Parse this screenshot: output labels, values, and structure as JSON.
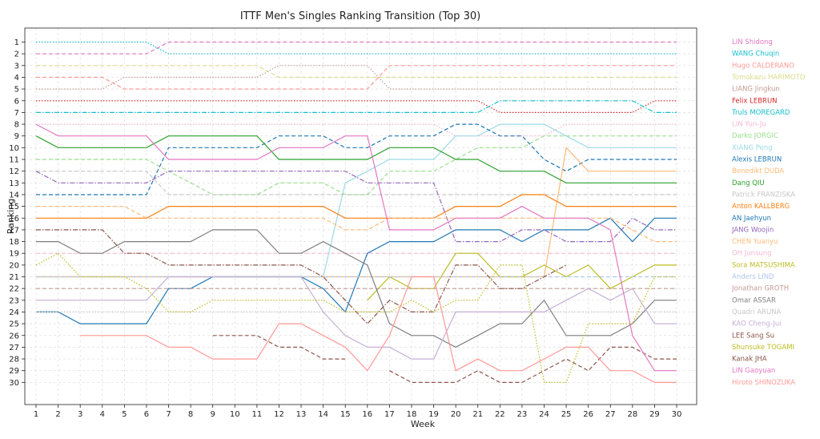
{
  "chart_data": {
    "type": "line",
    "title": "ITTF Men's Singles Ranking Transition (Top 30)",
    "xlabel": "Week",
    "ylabel": "Ranking",
    "x": [
      1,
      2,
      3,
      4,
      5,
      6,
      7,
      8,
      9,
      10,
      11,
      12,
      13,
      14,
      15,
      16,
      17,
      18,
      19,
      20,
      21,
      22,
      23,
      24,
      25,
      26,
      27,
      28,
      29,
      30
    ],
    "xlim": [
      1,
      30
    ],
    "ylim": [
      31.5,
      -0.5
    ],
    "y_ticks": [
      1,
      2,
      3,
      4,
      5,
      6,
      7,
      8,
      9,
      10,
      11,
      12,
      13,
      14,
      15,
      16,
      17,
      18,
      19,
      20,
      21,
      22,
      23,
      24,
      25,
      26,
      27,
      28,
      29,
      30
    ],
    "grid": true,
    "legend_placement": "right",
    "series": [
      {
        "name": "LIN Shidong",
        "color": "#e377c2",
        "dash": "dashed",
        "values": [
          2,
          2,
          2,
          2,
          2,
          2,
          1,
          1,
          1,
          1,
          1,
          1,
          1,
          1,
          1,
          1,
          1,
          1,
          1,
          1,
          1,
          1,
          1,
          1,
          1,
          1,
          1,
          1,
          1,
          1
        ]
      },
      {
        "name": "WANG Chuqin",
        "color": "#17becf",
        "dash": "dotted",
        "values": [
          1,
          1,
          1,
          1,
          1,
          1,
          2,
          2,
          2,
          2,
          2,
          2,
          2,
          2,
          2,
          2,
          2,
          2,
          2,
          2,
          2,
          2,
          2,
          2,
          2,
          2,
          2,
          2,
          2,
          2
        ]
      },
      {
        "name": "Hugo CALDERANO",
        "color": "#ff9896",
        "dash": "dashed",
        "values": [
          4,
          4,
          4,
          4,
          5,
          5,
          5,
          5,
          5,
          5,
          5,
          5,
          5,
          5,
          5,
          5,
          3,
          3,
          3,
          3,
          3,
          3,
          3,
          3,
          3,
          3,
          3,
          3,
          3,
          3
        ]
      },
      {
        "name": "Tomokazu HARIMOTO",
        "color": "#dbdb8d",
        "dash": "dashed",
        "values": [
          3,
          3,
          3,
          3,
          3,
          3,
          3,
          3,
          3,
          3,
          3,
          4,
          4,
          4,
          4,
          4,
          4,
          4,
          4,
          4,
          4,
          4,
          4,
          4,
          4,
          4,
          4,
          4,
          4,
          4
        ]
      },
      {
        "name": "LIANG Jingkun",
        "color": "#c49c94",
        "dash": "dotted",
        "values": [
          5,
          5,
          5,
          5,
          4,
          4,
          4,
          4,
          4,
          4,
          4,
          3,
          3,
          3,
          3,
          3,
          5,
          5,
          5,
          5,
          5,
          5,
          5,
          5,
          5,
          5,
          5,
          5,
          5,
          5
        ]
      },
      {
        "name": "Felix LEBRUN",
        "color": "#d62728",
        "dash": "dotted",
        "values": [
          6,
          6,
          6,
          6,
          6,
          6,
          6,
          6,
          6,
          6,
          6,
          6,
          6,
          6,
          6,
          6,
          6,
          6,
          6,
          6,
          6,
          7,
          7,
          7,
          7,
          7,
          7,
          7,
          6,
          6
        ]
      },
      {
        "name": "Truls MOREGARD",
        "color": "#17becf",
        "dash": "dashdot",
        "values": [
          7,
          7,
          7,
          7,
          7,
          7,
          7,
          7,
          7,
          7,
          7,
          7,
          7,
          7,
          7,
          7,
          7,
          7,
          7,
          7,
          7,
          6,
          6,
          6,
          6,
          6,
          6,
          6,
          7,
          7
        ]
      },
      {
        "name": "LIN Yun-Ju",
        "color": "#f7b6d2",
        "dash": "dotted",
        "values": [
          8,
          8,
          8,
          8,
          8,
          8,
          8,
          8,
          8,
          8,
          8,
          8,
          8,
          8,
          8,
          8,
          8,
          8,
          8,
          9,
          9,
          9,
          9,
          9,
          8,
          8,
          8,
          8,
          8,
          8
        ]
      },
      {
        "name": "Darko JORGIC",
        "color": "#98df8a",
        "dash": "dashed",
        "values": [
          11,
          11,
          11,
          11,
          11,
          11,
          12,
          13,
          14,
          14,
          14,
          13,
          13,
          13,
          14,
          14,
          12,
          12,
          12,
          11,
          10,
          10,
          10,
          9,
          9,
          9,
          9,
          9,
          9,
          9
        ]
      },
      {
        "name": "XIANG Peng",
        "color": "#9edae5",
        "dash": "solid",
        "values": [
          21,
          21,
          21,
          21,
          21,
          21,
          21,
          21,
          21,
          21,
          21,
          21,
          21,
          21,
          13,
          12,
          11,
          11,
          11,
          9,
          9,
          8,
          8,
          8,
          9,
          10,
          10,
          10,
          10,
          10
        ]
      },
      {
        "name": "Alexis LEBRUN",
        "color": "#1f77b4",
        "dash": "dashed",
        "values": [
          14,
          14,
          14,
          14,
          14,
          14,
          10,
          10,
          10,
          10,
          10,
          9,
          9,
          9,
          10,
          10,
          9,
          9,
          9,
          8,
          8,
          9,
          9,
          11,
          12,
          11,
          11,
          11,
          11,
          11
        ]
      },
      {
        "name": "Benedikt DUDA",
        "color": "#ffbb78",
        "dash": "solid",
        "values": [
          21,
          21,
          21,
          21,
          21,
          21,
          21,
          21,
          21,
          21,
          21,
          21,
          21,
          21,
          21,
          21,
          21,
          21,
          21,
          21,
          21,
          21,
          21,
          21,
          10,
          12,
          12,
          12,
          12,
          12
        ]
      },
      {
        "name": "Dang QIU",
        "color": "#2ca02c",
        "dash": "solid",
        "values": [
          9,
          10,
          10,
          10,
          10,
          10,
          9,
          9,
          9,
          9,
          9,
          11,
          11,
          11,
          11,
          11,
          10,
          10,
          10,
          11,
          11,
          12,
          12,
          12,
          13,
          13,
          13,
          13,
          13,
          13
        ]
      },
      {
        "name": "Patrick FRANZISKA",
        "color": "#c7c7c7",
        "dash": "dashed",
        "values": [
          12,
          12,
          12,
          12,
          12,
          12,
          14,
          14,
          14,
          14,
          14,
          14,
          14,
          14,
          14,
          14,
          14,
          14,
          14,
          14,
          14,
          14,
          14,
          14,
          14,
          14,
          14,
          14,
          14,
          14
        ]
      },
      {
        "name": "Anton KALLBERG",
        "color": "#ff7f0e",
        "dash": "solid",
        "values": [
          16,
          16,
          16,
          16,
          16,
          16,
          15,
          15,
          15,
          15,
          15,
          15,
          15,
          15,
          16,
          16,
          16,
          16,
          16,
          15,
          15,
          15,
          14,
          14,
          15,
          15,
          15,
          15,
          15,
          15
        ]
      },
      {
        "name": "AN Jaehyun",
        "color": "#1f77b4",
        "dash": "solid",
        "values": [
          24,
          24,
          25,
          25,
          25,
          25,
          22,
          22,
          21,
          21,
          21,
          21,
          21,
          22,
          24,
          19,
          18,
          18,
          18,
          17,
          17,
          17,
          18,
          17,
          17,
          17,
          16,
          18,
          16,
          16
        ]
      },
      {
        "name": "JANG Woojin",
        "color": "#9467bd",
        "dash": "dashdot",
        "values": [
          12,
          13,
          13,
          13,
          13,
          13,
          12,
          12,
          12,
          12,
          12,
          12,
          12,
          12,
          12,
          13,
          13,
          13,
          13,
          18,
          18,
          18,
          17,
          17,
          18,
          18,
          18,
          16,
          17,
          17
        ]
      },
      {
        "name": "CHEN Yuanyu",
        "color": "#ffbb78",
        "dash": "dashed",
        "values": [
          15,
          15,
          15,
          15,
          15,
          16,
          16,
          16,
          16,
          16,
          16,
          16,
          16,
          16,
          17,
          17,
          16,
          16,
          16,
          16,
          16,
          16,
          16,
          16,
          16,
          16,
          16,
          17,
          18,
          18
        ]
      },
      {
        "name": "OH Junsung",
        "color": "#f7b6d2",
        "dash": "dashed",
        "values": [
          19,
          19,
          19,
          19,
          19,
          19,
          19,
          19,
          19,
          19,
          19,
          19,
          19,
          19,
          19,
          19,
          19,
          19,
          19,
          19,
          19,
          19,
          19,
          19,
          19,
          19,
          19,
          19,
          19,
          19
        ]
      },
      {
        "name": "Sora MATSUSHIMA",
        "color": "#bcbd22",
        "dash": "solid",
        "values": [
          null,
          null,
          null,
          null,
          null,
          null,
          null,
          null,
          null,
          null,
          null,
          null,
          null,
          null,
          null,
          23,
          21,
          22,
          22,
          19,
          19,
          21,
          21,
          20,
          21,
          20,
          22,
          21,
          20,
          20
        ]
      },
      {
        "name": "Anders LIND",
        "color": "#aec7e8",
        "dash": "dashed",
        "values": [
          21,
          21,
          21,
          21,
          21,
          21,
          21,
          21,
          21,
          21,
          21,
          21,
          21,
          21,
          21,
          21,
          21,
          21,
          21,
          21,
          21,
          21,
          21,
          21,
          21,
          21,
          21,
          21,
          21,
          21
        ]
      },
      {
        "name": "Jonathan GROTH",
        "color": "#c49c94",
        "dash": "dashed",
        "values": [
          22,
          22,
          22,
          22,
          22,
          22,
          22,
          22,
          22,
          22,
          22,
          22,
          22,
          22,
          22,
          22,
          22,
          22,
          22,
          22,
          22,
          22,
          22,
          22,
          22,
          22,
          22,
          22,
          22,
          22
        ]
      },
      {
        "name": "Omar ASSAR",
        "color": "#7f7f7f",
        "dash": "solid",
        "values": [
          18,
          18,
          19,
          19,
          18,
          18,
          18,
          18,
          17,
          17,
          17,
          19,
          19,
          18,
          19,
          20,
          25,
          26,
          26,
          27,
          26,
          25,
          25,
          23,
          26,
          26,
          26,
          25,
          23,
          23
        ]
      },
      {
        "name": "Quadri ARUNA",
        "color": "#c7c7c7",
        "dash": "dotted",
        "values": [
          24,
          24,
          24,
          24,
          24,
          24,
          24,
          24,
          24,
          24,
          24,
          24,
          24,
          24,
          24,
          24,
          24,
          24,
          24,
          24,
          24,
          24,
          24,
          24,
          24,
          24,
          24,
          24,
          24,
          24
        ]
      },
      {
        "name": "KAO Cheng-Jui",
        "color": "#c5b0d5",
        "dash": "solid",
        "values": [
          23,
          23,
          23,
          23,
          23,
          23,
          21,
          21,
          21,
          21,
          21,
          21,
          21,
          24,
          26,
          27,
          27,
          28,
          28,
          24,
          24,
          24,
          24,
          24,
          23,
          22,
          23,
          22,
          25,
          25
        ]
      },
      {
        "name": "LEE Sang Su",
        "color": "#8c564b",
        "dash": "dashdot",
        "values": [
          17,
          17,
          17,
          17,
          19,
          19,
          20,
          20,
          20,
          20,
          20,
          20,
          20,
          21,
          23,
          25,
          23,
          24,
          24,
          20,
          20,
          22,
          22,
          21,
          20,
          null,
          null,
          null,
          null,
          null
        ]
      },
      {
        "name": "Shunsuke TOGAMI",
        "color": "#bcbd22",
        "dash": "dotted",
        "values": [
          20,
          19,
          21,
          21,
          21,
          22,
          24,
          24,
          23,
          23,
          23,
          23,
          23,
          23,
          24,
          24,
          24,
          23,
          24,
          23,
          23,
          20,
          20,
          30,
          30,
          25,
          25,
          25,
          21,
          21
        ]
      },
      {
        "name": "Kanak JHA",
        "color": "#8c564b",
        "dash": "dashed",
        "values": [
          null,
          null,
          null,
          null,
          null,
          null,
          null,
          null,
          26,
          26,
          26,
          27,
          27,
          28,
          28,
          null,
          29,
          30,
          30,
          30,
          29,
          30,
          30,
          29,
          28,
          29,
          27,
          27,
          28,
          28
        ]
      },
      {
        "name": "LIN Gaoyuan",
        "color": "#e377c2",
        "dash": "solid",
        "values": [
          8,
          9,
          9,
          9,
          9,
          9,
          11,
          11,
          11,
          11,
          11,
          10,
          10,
          10,
          9,
          9,
          17,
          17,
          17,
          16,
          16,
          16,
          15,
          16,
          16,
          16,
          17,
          26,
          29,
          29
        ]
      },
      {
        "name": "Hiroto SHINOZUKA",
        "color": "#ff9896",
        "dash": "solid",
        "values": [
          null,
          null,
          26,
          26,
          26,
          26,
          27,
          27,
          28,
          28,
          28,
          25,
          25,
          26,
          27,
          29,
          26,
          21,
          21,
          29,
          28,
          29,
          29,
          28,
          27,
          27,
          29,
          29,
          30,
          30
        ]
      }
    ]
  }
}
